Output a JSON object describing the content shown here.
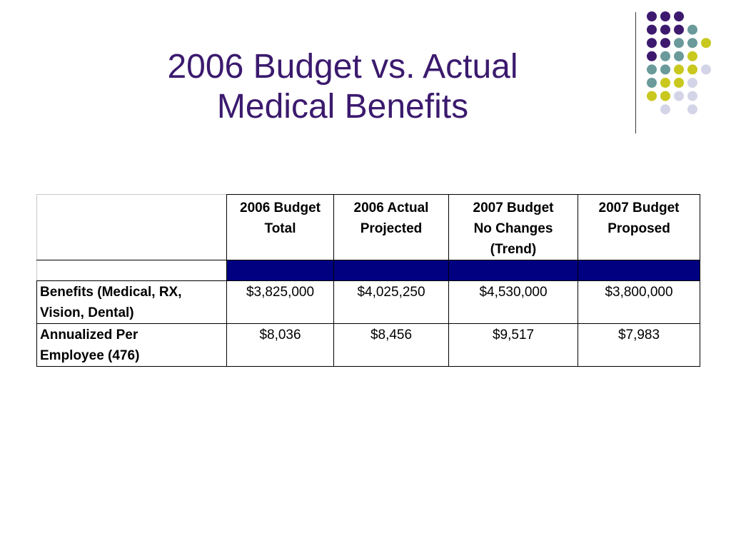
{
  "slide": {
    "title_line1": "2006 Budget vs. Actual",
    "title_line2": "Medical Benefits"
  },
  "decoration": {
    "dot_colors": {
      "purple": "#3d1a6e",
      "teal": "#6a9a9a",
      "yellow": "#c8c81e",
      "lavender": "#d4d4e8"
    }
  },
  "table": {
    "band_color": "#000080",
    "columns": [
      {
        "line1": "2006 Budget",
        "line2": "Total",
        "line3": ""
      },
      {
        "line1": "2006 Actual",
        "line2": "Projected",
        "line3": ""
      },
      {
        "line1": "2007 Budget",
        "line2": "No Changes",
        "line3": "(Trend)"
      },
      {
        "line1": "2007 Budget",
        "line2": "Proposed",
        "line3": ""
      }
    ],
    "rows": [
      {
        "label_line1": "Benefits (Medical, RX,",
        "label_line2": "Vision, Dental)",
        "values": [
          "$3,825,000",
          "$4,025,250",
          "$4,530,000",
          "$3,800,000"
        ]
      },
      {
        "label_line1": "Annualized Per",
        "label_line2": "Employee (476)",
        "values": [
          "$8,036",
          "$8,456",
          "$9,517",
          "$7,983"
        ]
      }
    ]
  }
}
